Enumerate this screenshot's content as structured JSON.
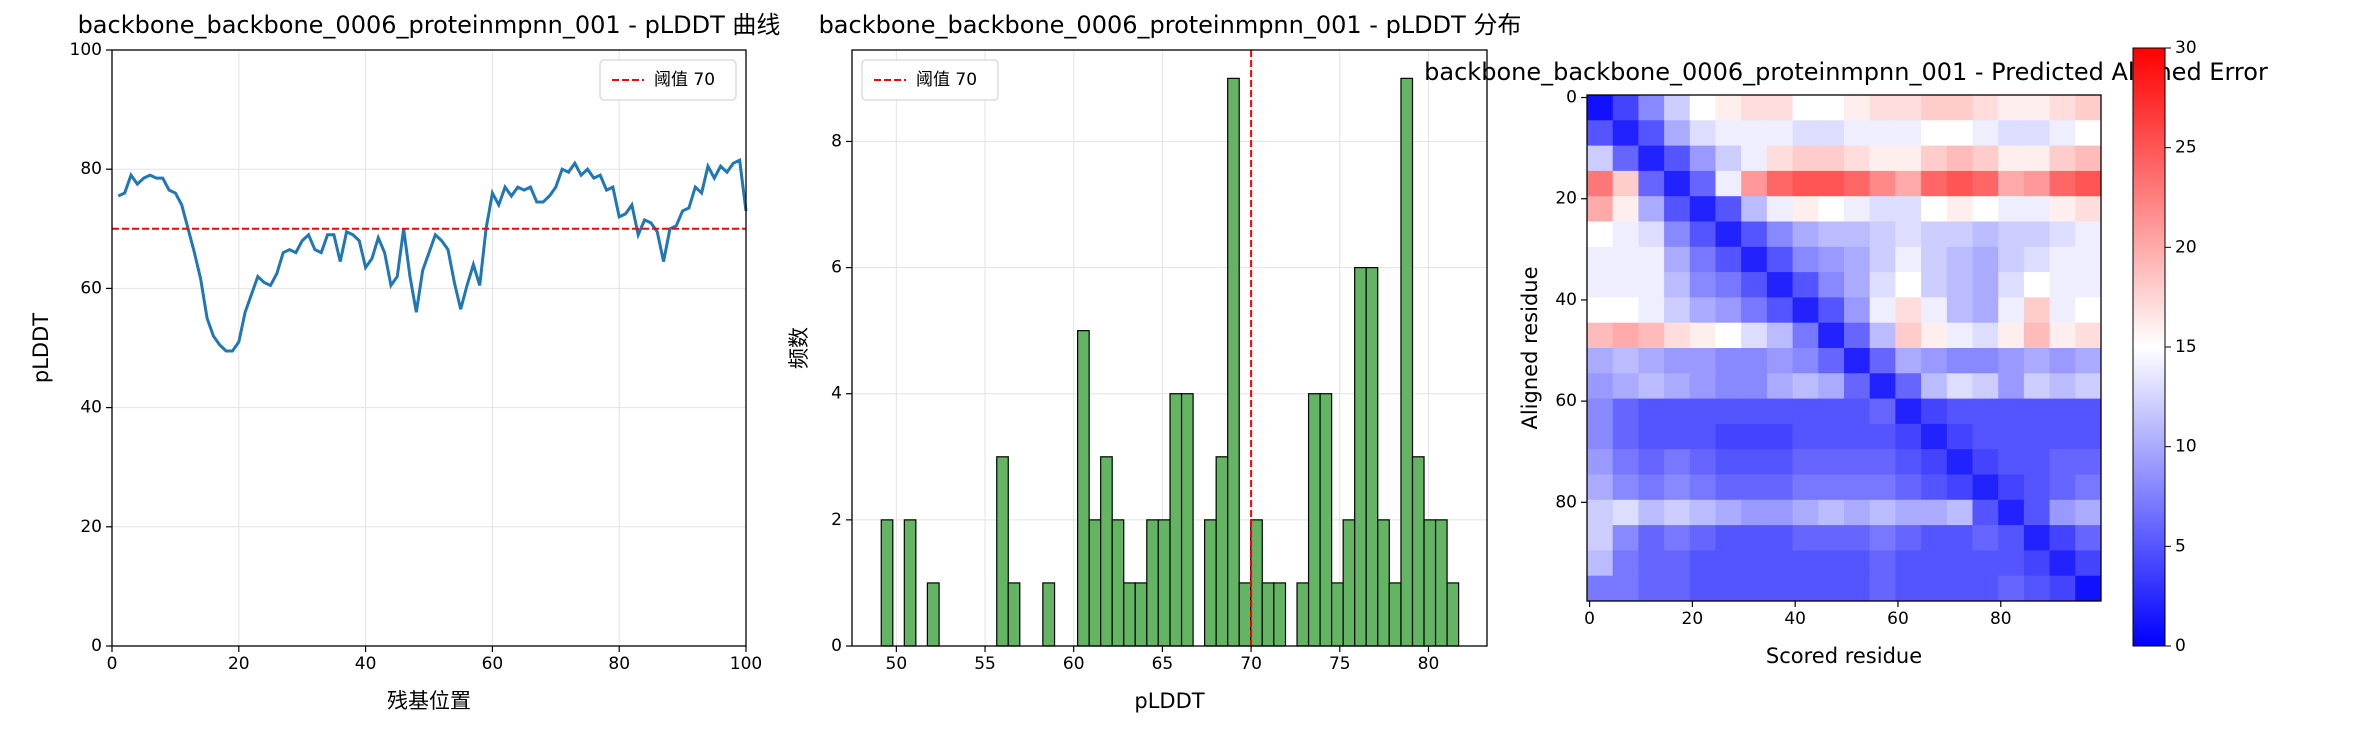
{
  "chart_data": [
    {
      "type": "line",
      "title": "backbone_backbone_0006_proteinmpnn_001 - pLDDT 曲线",
      "xlabel": "残基位置",
      "ylabel": "pLDDT",
      "x": [
        1,
        2,
        3,
        4,
        5,
        6,
        7,
        8,
        9,
        10,
        11,
        12,
        13,
        14,
        15,
        16,
        17,
        18,
        19,
        20,
        21,
        22,
        23,
        24,
        25,
        26,
        27,
        28,
        29,
        30,
        31,
        32,
        33,
        34,
        35,
        36,
        37,
        38,
        39,
        40,
        41,
        42,
        43,
        44,
        45,
        46,
        47,
        48,
        49,
        50,
        51,
        52,
        53,
        54,
        55,
        56,
        57,
        58,
        59,
        60,
        61,
        62,
        63,
        64,
        65,
        66,
        67,
        68,
        69,
        70,
        71,
        72,
        73,
        74,
        75,
        76,
        77,
        78,
        79,
        80,
        81,
        82,
        83,
        84,
        85,
        86,
        87,
        88,
        89,
        90,
        91,
        92,
        93,
        94,
        95,
        96,
        97,
        98,
        99,
        100
      ],
      "values": [
        75.5,
        76,
        79,
        77.5,
        78.5,
        79,
        78.5,
        78.5,
        76.5,
        76,
        74,
        70,
        66,
        61.5,
        55,
        52,
        50.5,
        49.5,
        49.5,
        51,
        56,
        59,
        62,
        61,
        60.5,
        62.5,
        66,
        66.5,
        66,
        68,
        69,
        66.5,
        66,
        69,
        69,
        64.5,
        69.5,
        69,
        68,
        63.5,
        65,
        68.5,
        66,
        60.5,
        62,
        70,
        62,
        56,
        63,
        66,
        69,
        68,
        66.5,
        61,
        56.5,
        60.5,
        64,
        60.5,
        70,
        76,
        74,
        77,
        75.5,
        77,
        76.5,
        77,
        74.5,
        74.5,
        75.5,
        77,
        80,
        79.5,
        81,
        79,
        80,
        78.5,
        79,
        76.5,
        77,
        72,
        72.5,
        74,
        69,
        71.5,
        71,
        69.5,
        64.5,
        70,
        70.5,
        73,
        73.5,
        77,
        76,
        80.5,
        78.5,
        80.5,
        79.5,
        81,
        81.5,
        73
      ],
      "color": "#1f77b4",
      "xlim": [
        0,
        100
      ],
      "ylim": [
        0,
        100
      ],
      "xticks": [
        0,
        20,
        40,
        60,
        80,
        100
      ],
      "yticks": [
        0,
        20,
        40,
        60,
        80,
        100
      ],
      "grid": true,
      "legend": "upper right",
      "threshold": {
        "value": 70,
        "label": "阈值 70",
        "color": "#ff0000",
        "orientation": "horizontal"
      }
    },
    {
      "type": "histogram",
      "title": "backbone_backbone_0006_proteinmpnn_001 - pLDDT 分布",
      "xlabel": "pLDDT",
      "ylabel": "频数",
      "bins": [
        49.15,
        49.8,
        50.45,
        51.1,
        51.75,
        52.41,
        53.06,
        53.71,
        54.36,
        55.01,
        55.66,
        56.31,
        56.96,
        57.61,
        58.26,
        58.92,
        59.57,
        60.22,
        60.87,
        61.52,
        62.17,
        62.82,
        63.47,
        64.12,
        64.77,
        65.43,
        66.08,
        66.73,
        67.38,
        68.03,
        68.68,
        69.33,
        69.98,
        70.63,
        71.28,
        71.94,
        72.59,
        73.24,
        73.89,
        74.54,
        75.19,
        75.84,
        76.49,
        77.14,
        77.79,
        78.45,
        79.1,
        79.75,
        80.4,
        81.05,
        81.7
      ],
      "counts": [
        2,
        0,
        2,
        0,
        1,
        0,
        0,
        0,
        0,
        0,
        3,
        1,
        0,
        0,
        1,
        0,
        0,
        5,
        2,
        3,
        2,
        1,
        1,
        2,
        2,
        4,
        4,
        0,
        2,
        3,
        9,
        1,
        2,
        1,
        1,
        0,
        1,
        4,
        4,
        1,
        2,
        6,
        6,
        2,
        1,
        9,
        3,
        2,
        2,
        1
      ],
      "color": "#63b563",
      "xlim": [
        47.5,
        83.3
      ],
      "ylim": [
        0,
        9.45
      ],
      "xticks": [
        50,
        55,
        60,
        65,
        70,
        75,
        80
      ],
      "yticks": [
        0,
        2,
        4,
        6,
        8
      ],
      "grid": true,
      "legend": "upper left",
      "threshold": {
        "value": 70,
        "label": "阈值 70",
        "color": "#ff0000",
        "orientation": "vertical"
      }
    },
    {
      "type": "heatmap",
      "title": "backbone_backbone_0006_proteinmpnn_001 - Predicted Aligned Error",
      "xlabel": "Scored residue",
      "ylabel": "Aligned residue",
      "x": [
        0,
        5,
        10,
        15,
        20,
        25,
        30,
        35,
        40,
        45,
        50,
        55,
        60,
        65,
        70,
        75,
        80,
        85,
        90,
        95
      ],
      "y": [
        0,
        5,
        10,
        15,
        20,
        25,
        30,
        35,
        40,
        45,
        50,
        55,
        60,
        65,
        70,
        75,
        80,
        85,
        90,
        95
      ],
      "z": [
        [
          1,
          4,
          8,
          12,
          15,
          16,
          17,
          17,
          15,
          15,
          16,
          17,
          17,
          18,
          18,
          17,
          16,
          16,
          17,
          18
        ],
        [
          5,
          2,
          5,
          10,
          13,
          14,
          14,
          14,
          13,
          13,
          14,
          14,
          14,
          15,
          15,
          14,
          13,
          13,
          14,
          15
        ],
        [
          12,
          6,
          2,
          5,
          9,
          12,
          14,
          17,
          18,
          18,
          17,
          16,
          16,
          18,
          19,
          18,
          16,
          16,
          18,
          19
        ],
        [
          23,
          18,
          6,
          2,
          6,
          14,
          21,
          24,
          25,
          25,
          24,
          22,
          20,
          24,
          25,
          24,
          20,
          21,
          24,
          25
        ],
        [
          20,
          16,
          10,
          5,
          2,
          5,
          11,
          14,
          16,
          15,
          14,
          13,
          13,
          15,
          16,
          15,
          14,
          14,
          16,
          17
        ],
        [
          15,
          14,
          13,
          8,
          5,
          2,
          5,
          8,
          10,
          11,
          11,
          12,
          13,
          12,
          12,
          11,
          12,
          12,
          13,
          14
        ],
        [
          14,
          14,
          14,
          10,
          7,
          5,
          2,
          5,
          8,
          9,
          10,
          12,
          14,
          12,
          11,
          10,
          12,
          13,
          14,
          14
        ],
        [
          14,
          14,
          14,
          11,
          8,
          7,
          5,
          2,
          5,
          8,
          10,
          13,
          15,
          12,
          11,
          10,
          13,
          15,
          14,
          14
        ],
        [
          15,
          15,
          14,
          12,
          10,
          9,
          7,
          5,
          2,
          5,
          9,
          14,
          17,
          14,
          11,
          10,
          14,
          18,
          14,
          15
        ],
        [
          19,
          20,
          19,
          17,
          16,
          15,
          13,
          11,
          7,
          2,
          6,
          11,
          18,
          16,
          14,
          13,
          16,
          19,
          16,
          17
        ],
        [
          10,
          11,
          10,
          9,
          9,
          8,
          8,
          9,
          8,
          6,
          2,
          6,
          10,
          9,
          8,
          8,
          9,
          10,
          9,
          10
        ],
        [
          9,
          10,
          11,
          10,
          9,
          8,
          8,
          10,
          11,
          10,
          6,
          2,
          6,
          11,
          13,
          12,
          9,
          12,
          11,
          12
        ],
        [
          8,
          6,
          5,
          5,
          5,
          5,
          5,
          5,
          5,
          5,
          5,
          6,
          2,
          4,
          5,
          5,
          5,
          5,
          5,
          5
        ],
        [
          8,
          6,
          5,
          5,
          5,
          4,
          4,
          4,
          5,
          5,
          5,
          5,
          4,
          2,
          4,
          5,
          5,
          5,
          5,
          5
        ],
        [
          9,
          7,
          6,
          7,
          6,
          5,
          5,
          5,
          6,
          6,
          6,
          6,
          5,
          4,
          2,
          4,
          5,
          5,
          6,
          6
        ],
        [
          10,
          8,
          7,
          8,
          7,
          6,
          6,
          6,
          7,
          7,
          7,
          7,
          6,
          5,
          4,
          2,
          4,
          5,
          6,
          7
        ],
        [
          12,
          13,
          11,
          12,
          11,
          10,
          9,
          9,
          10,
          11,
          10,
          11,
          10,
          10,
          11,
          5,
          2,
          5,
          9,
          10
        ],
        [
          12,
          8,
          6,
          7,
          6,
          5,
          5,
          5,
          6,
          6,
          6,
          7,
          6,
          5,
          5,
          6,
          5,
          2,
          4,
          6
        ],
        [
          11,
          7,
          6,
          6,
          5,
          5,
          5,
          5,
          5,
          5,
          5,
          6,
          5,
          5,
          5,
          5,
          5,
          4,
          2,
          4
        ],
        [
          7,
          7,
          6,
          6,
          5,
          5,
          5,
          5,
          5,
          5,
          5,
          6,
          5,
          5,
          5,
          5,
          6,
          5,
          4,
          1
        ]
      ],
      "cmap": "bwr",
      "xlim": [
        -0.5,
        99.5
      ],
      "ylim": [
        99.5,
        -0.5
      ],
      "xticks": [
        0,
        20,
        40,
        60,
        80
      ],
      "yticks": [
        0,
        20,
        40,
        60,
        80
      ],
      "grid": false,
      "colorbar": {
        "lim": [
          0,
          30
        ],
        "ticks": [
          0,
          5,
          10,
          15,
          20,
          25,
          30
        ]
      }
    }
  ]
}
